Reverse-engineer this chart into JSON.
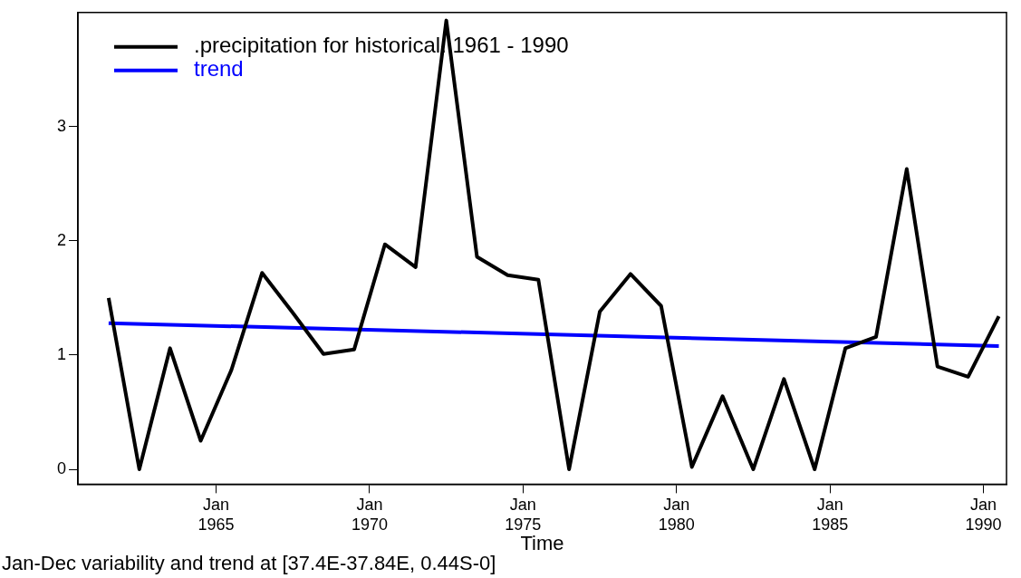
{
  "chart_data": {
    "type": "line",
    "xlabel": "Time",
    "annotations": [
      "Jan-Dec variability and trend at [37.4E-37.84E, 0.44S-0]"
    ],
    "legend": "top left",
    "grid": false,
    "marker": "none",
    "line_style": "solid",
    "xlim": [
      "1960-07",
      "1990-10"
    ],
    "ylim": [
      -0.13,
      4.0
    ],
    "xticks": [
      {
        "value": "1965-01",
        "label": "Jan 1965"
      },
      {
        "value": "1970-01",
        "label": "Jan 1970"
      },
      {
        "value": "1975-01",
        "label": "Jan 1975"
      },
      {
        "value": "1980-01",
        "label": "Jan 1980"
      },
      {
        "value": "1985-01",
        "label": "Jan 1985"
      },
      {
        "value": "1990-01",
        "label": "Jan 1990"
      }
    ],
    "yticks": [
      0,
      1,
      2,
      3
    ],
    "series": [
      {
        "name": ".precipitation for historical: 1961 - 1990",
        "color": "#000000",
        "x": [
          "1961-07",
          "1962-07",
          "1963-07",
          "1964-07",
          "1965-07",
          "1966-07",
          "1967-07",
          "1968-07",
          "1969-07",
          "1970-07",
          "1971-07",
          "1972-07",
          "1973-07",
          "1974-07",
          "1975-07",
          "1976-07",
          "1977-07",
          "1978-07",
          "1979-07",
          "1980-07",
          "1981-07",
          "1982-07",
          "1983-07",
          "1984-07",
          "1985-07",
          "1986-07",
          "1987-07",
          "1988-07",
          "1989-07",
          "1990-07"
        ],
        "values": [
          1.5,
          0,
          1.06,
          0.25,
          0.87,
          1.72,
          1.37,
          1.01,
          1.05,
          1.97,
          1.77,
          3.93,
          1.86,
          1.7,
          1.66,
          0,
          1.38,
          1.71,
          1.43,
          0.02,
          0.64,
          0,
          0.79,
          0,
          1.06,
          1.16,
          2.63,
          0.9,
          0.81,
          1.34
        ]
      },
      {
        "name": "trend",
        "color": "#0000ff",
        "x": [
          "1961-07",
          "1990-07"
        ],
        "values": [
          1.28,
          1.08
        ]
      }
    ]
  }
}
